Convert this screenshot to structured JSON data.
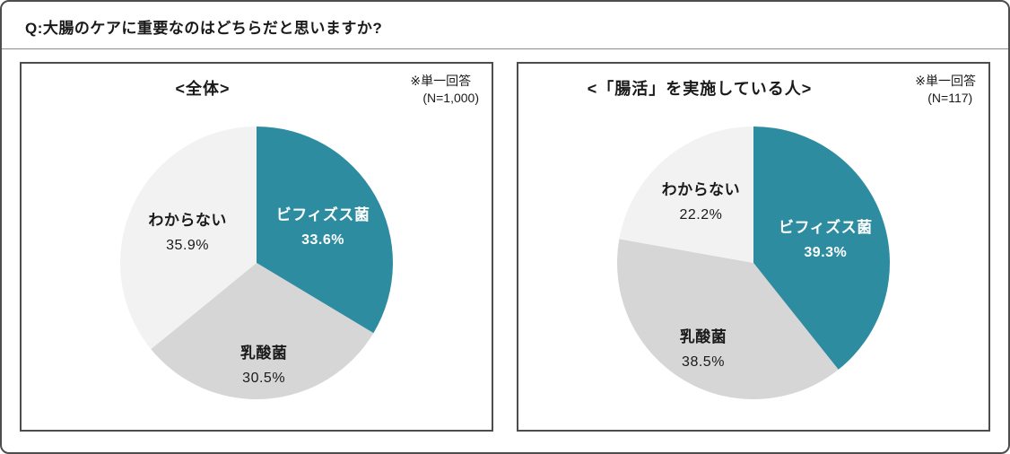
{
  "question": "Q:大腸のケアに重要なのはどちらだと思いますか?",
  "colors": {
    "bifidus_teal": "#2e8ca0",
    "lactic_gray": "#d6d6d6",
    "unknown_light": "#f2f2f2",
    "border_dark": "#4d4d4d",
    "text": "#1a1a1a"
  },
  "chart_data": [
    {
      "type": "pie",
      "title": "<全体>",
      "note_line1": "※単一回答",
      "note_line2": "(N=1,000)",
      "start_angle": 0,
      "slices": [
        {
          "label": "ビフィズス菌",
          "value": 33.6,
          "pct_text": "33.6%",
          "color": "#2e8ca0",
          "text_color": "#ffffff",
          "label_r": 0.56,
          "bold_pct": true
        },
        {
          "label": "乳酸菌",
          "value": 30.5,
          "pct_text": "30.5%",
          "color": "#d6d6d6",
          "text_color": "#1a1a1a",
          "label_r": 0.74,
          "bold_pct": false
        },
        {
          "label": "わからない",
          "value": 35.9,
          "pct_text": "35.9%",
          "color": "#f2f2f2",
          "text_color": "#1a1a1a",
          "label_r": 0.56,
          "bold_pct": false
        }
      ]
    },
    {
      "type": "pie",
      "title": "<「腸活」を実施している人>",
      "note_line1": "※単一回答",
      "note_line2": "(N=117)",
      "start_angle": 0,
      "slices": [
        {
          "label": "ビフィズス菌",
          "value": 39.3,
          "pct_text": "39.3%",
          "color": "#2e8ca0",
          "text_color": "#ffffff",
          "label_r": 0.56,
          "bold_pct": true
        },
        {
          "label": "乳酸菌",
          "value": 38.5,
          "pct_text": "38.5%",
          "color": "#d6d6d6",
          "text_color": "#1a1a1a",
          "label_r": 0.72,
          "bold_pct": false
        },
        {
          "label": "わからない",
          "value": 22.2,
          "pct_text": "22.2%",
          "color": "#f2f2f2",
          "text_color": "#1a1a1a",
          "label_r": 0.6,
          "bold_pct": false
        }
      ]
    }
  ]
}
